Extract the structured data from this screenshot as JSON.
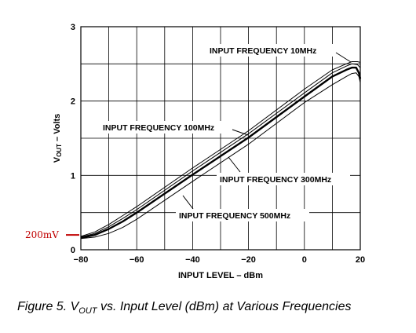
{
  "chart_data": {
    "type": "line",
    "caption": {
      "prefix": "Figure 5.  V",
      "subscript": "OUT",
      "suffix": " vs. Input Level (dBm) at Various Frequencies"
    },
    "xlabel": "INPUT LEVEL – dBm",
    "ylabel": {
      "main": "V",
      "sub": "OUT",
      "rest": " – Volts"
    },
    "xlim": [
      -80,
      20
    ],
    "ylim": [
      0,
      3
    ],
    "x_ticks": [
      -80,
      -60,
      -40,
      -20,
      0,
      20
    ],
    "x_tick_labels": [
      "−80",
      "−60",
      "−40",
      "−20",
      "0",
      "20"
    ],
    "y_ticks": [
      0,
      1,
      2,
      3
    ],
    "y_tick_labels": [
      "0",
      "1",
      "2",
      "3"
    ],
    "x_grid": [
      -80,
      -70,
      -60,
      -50,
      -40,
      -30,
      -20,
      -10,
      0,
      10,
      20
    ],
    "y_grid": [
      0,
      0.5,
      1,
      1.5,
      2,
      2.5,
      3
    ],
    "grid": true,
    "marker": {
      "label": "200mV",
      "y": 0.2,
      "color": "#c00000"
    },
    "series": [
      {
        "name": "INPUT FREQUENCY 10MHz",
        "x": [
          -80,
          -75,
          -70,
          -65,
          -60,
          -40,
          -20,
          0,
          10,
          15,
          17,
          19,
          20
        ],
        "y": [
          0.18,
          0.24,
          0.34,
          0.46,
          0.58,
          1.1,
          1.6,
          2.16,
          2.42,
          2.5,
          2.53,
          2.53,
          2.52
        ]
      },
      {
        "name": "INPUT FREQUENCY 100MHz",
        "x": [
          -80,
          -75,
          -70,
          -65,
          -60,
          -40,
          -20,
          0,
          10,
          15,
          17,
          19,
          20
        ],
        "y": [
          0.17,
          0.22,
          0.31,
          0.42,
          0.54,
          1.06,
          1.56,
          2.11,
          2.38,
          2.47,
          2.5,
          2.49,
          2.45
        ]
      },
      {
        "name": "INPUT FREQUENCY 300MHz",
        "x": [
          -80,
          -75,
          -70,
          -65,
          -60,
          -40,
          -20,
          0,
          10,
          15,
          17,
          18.5,
          19.5,
          20
        ],
        "y": [
          0.16,
          0.2,
          0.28,
          0.38,
          0.5,
          1.01,
          1.51,
          2.06,
          2.33,
          2.42,
          2.45,
          2.45,
          2.38,
          2.3
        ]
      },
      {
        "name": "INPUT FREQUENCY 500MHz",
        "x": [
          -80,
          -75,
          -70,
          -65,
          -60,
          -40,
          -20,
          0,
          10,
          15,
          17,
          18.5,
          19.5,
          20
        ],
        "y": [
          0.15,
          0.17,
          0.22,
          0.3,
          0.41,
          0.92,
          1.42,
          1.98,
          2.22,
          2.33,
          2.37,
          2.38,
          2.33,
          2.25
        ]
      }
    ]
  }
}
